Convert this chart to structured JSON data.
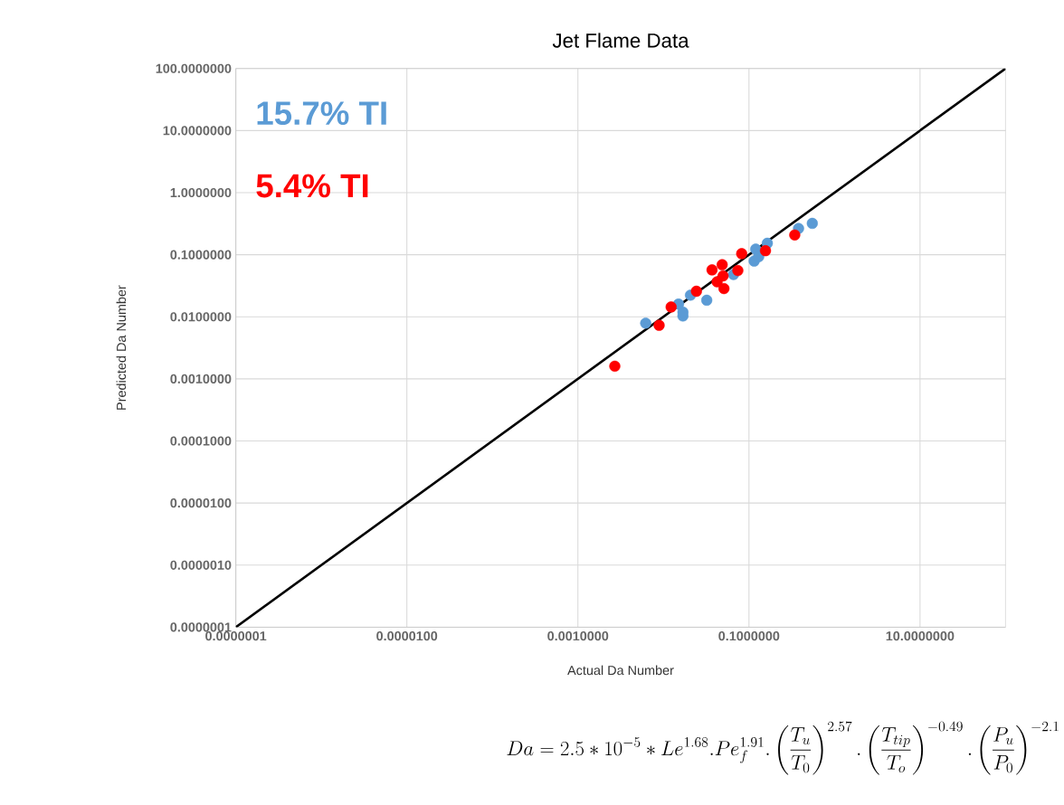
{
  "chart_data": {
    "type": "scatter",
    "title": "Jet Flame Data",
    "xlabel": "Actual Da Number",
    "ylabel": "Predicted Da Number",
    "log": "xy",
    "grid": true,
    "xlim": [
      1e-07,
      100
    ],
    "ylim": [
      1e-07,
      100
    ],
    "xticks": [
      {
        "value": 1e-07,
        "label": "0.0000001"
      },
      {
        "value": 1e-05,
        "label": "0.0000100"
      },
      {
        "value": 0.001,
        "label": "0.0010000"
      },
      {
        "value": 0.1,
        "label": "0.1000000"
      },
      {
        "value": 10,
        "label": "10.0000000"
      }
    ],
    "yticks": [
      {
        "value": 1e-07,
        "label": "0.0000001"
      },
      {
        "value": 1e-06,
        "label": "0.0000010"
      },
      {
        "value": 1e-05,
        "label": "0.0000100"
      },
      {
        "value": 0.0001,
        "label": "0.0001000"
      },
      {
        "value": 0.001,
        "label": "0.0010000"
      },
      {
        "value": 0.01,
        "label": "0.0100000"
      },
      {
        "value": 0.1,
        "label": "0.1000000"
      },
      {
        "value": 1,
        "label": "1.0000000"
      },
      {
        "value": 10,
        "label": "10.0000000"
      },
      {
        "value": 100,
        "label": "100.0000000"
      }
    ],
    "series": [
      {
        "name": "15.7% TI",
        "marker": "circle",
        "color": "#5b9bd5",
        "x": [
          0.0062,
          0.0169,
          0.0169,
          0.0207,
          0.0321,
          0.015,
          0.066,
          0.115,
          0.12,
          0.164,
          0.38,
          0.55,
          0.13
        ],
        "values": [
          0.0079,
          0.0103,
          0.0119,
          0.0223,
          0.0185,
          0.016,
          0.048,
          0.079,
          0.123,
          0.153,
          0.265,
          0.32,
          0.093
        ]
      },
      {
        "name": "5.4% TI",
        "marker": "circle",
        "color": "#ff0000",
        "x": [
          0.0027,
          0.0089,
          0.0123,
          0.0243,
          0.037,
          0.0486,
          0.051,
          0.0424,
          0.0498,
          0.0741,
          0.0822,
          0.156,
          0.343
        ],
        "values": [
          0.0016,
          0.0073,
          0.0144,
          0.0258,
          0.057,
          0.069,
          0.0285,
          0.0366,
          0.0456,
          0.0556,
          0.104,
          0.116,
          0.208
        ]
      },
      {
        "type": "line",
        "marker": "none",
        "color": "#000000",
        "x": [
          1e-07,
          100
        ],
        "values": [
          1e-07,
          100
        ]
      }
    ],
    "annotations": [
      "Da = 2.5 \\ast 10^{-5} \\ast Le^{1.68} . Pe_f^{1.91} . \\left(\\frac{T_u}{T_0}\\right)^{2.57} . \\left(\\frac{T_{tip}}{T_o}\\right)^{-0.49} . \\left(\\frac{P_u}{P_0}\\right)^{-2.1}"
    ]
  }
}
